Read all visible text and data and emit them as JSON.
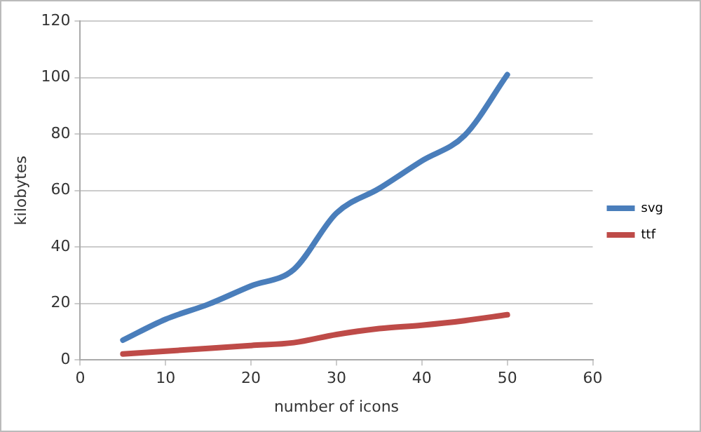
{
  "chart_data": {
    "type": "line",
    "xlabel": "number of icons",
    "ylabel": "kilobytes",
    "x": [
      5,
      10,
      15,
      20,
      25,
      30,
      35,
      40,
      45,
      50
    ],
    "series": [
      {
        "name": "svg",
        "color": "#4a7ebb",
        "values": [
          7,
          14.4,
          19.7,
          26.2,
          32,
          52,
          60.7,
          70.5,
          79.5,
          101
        ]
      },
      {
        "name": "ttf",
        "color": "#be4b48",
        "values": [
          2.1,
          3.1,
          4.1,
          5.1,
          6.1,
          9,
          11.1,
          12.3,
          13.9,
          16
        ]
      }
    ],
    "xlim": [
      0,
      60
    ],
    "xticks": [
      0,
      10,
      20,
      30,
      40,
      50,
      60
    ],
    "ylim": [
      0,
      120
    ],
    "yticks": [
      0,
      20,
      40,
      60,
      80,
      100,
      120
    ],
    "grid": "y",
    "legend": "right",
    "marker": "none",
    "line_style": "solid"
  }
}
